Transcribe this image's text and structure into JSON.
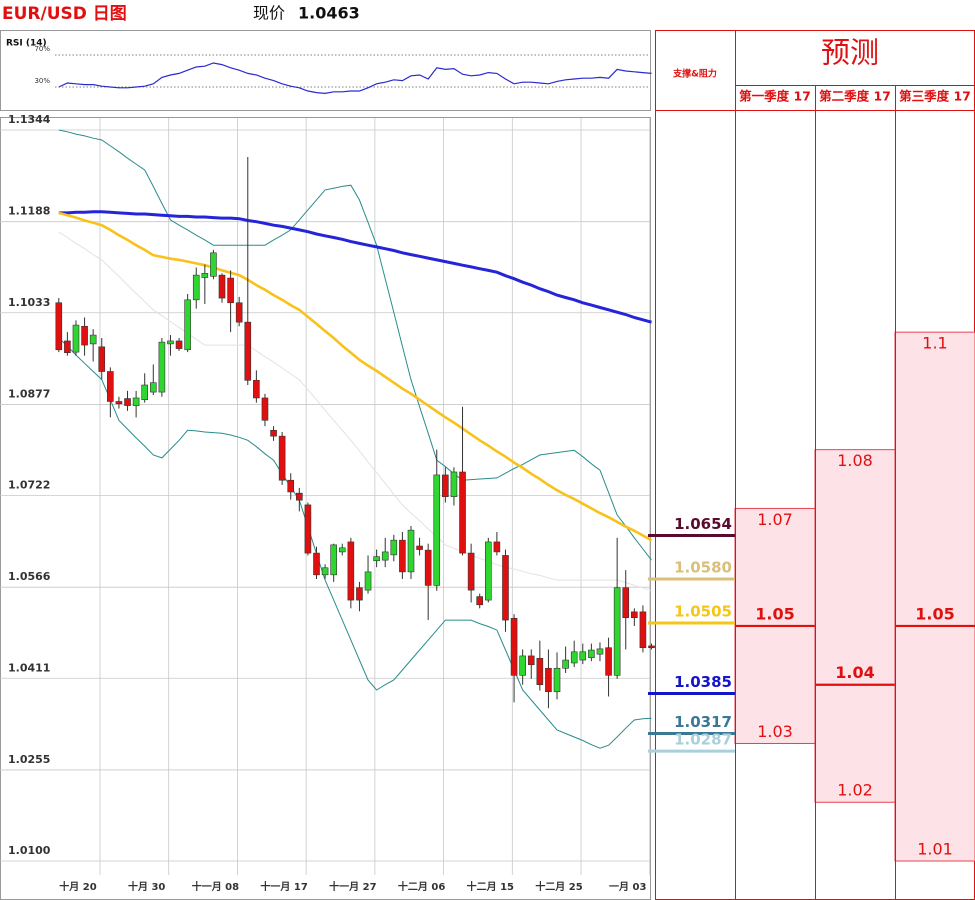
{
  "header": {
    "title": "EUR/USD 日图",
    "price_label": "现价",
    "price": 1.0463
  },
  "chart_data": [
    {
      "type": "line",
      "title": "RSI (14)",
      "color": "#2a2ad0",
      "ylim": [
        0,
        100
      ],
      "yticks": [
        {
          "value": 30,
          "label": "30%"
        },
        {
          "value": 70,
          "label": "70%"
        }
      ],
      "values": [
        30,
        35,
        34,
        33,
        33,
        31,
        30,
        29,
        29,
        30,
        31,
        34,
        42,
        45,
        47,
        51,
        55,
        56,
        60,
        58,
        54,
        51,
        47,
        45,
        41,
        38,
        34,
        31,
        29,
        25,
        23,
        22,
        24,
        24,
        25,
        25,
        29,
        34,
        36,
        39,
        38,
        44,
        45,
        40,
        54,
        52,
        53,
        46,
        44,
        45,
        48,
        47,
        40,
        34,
        36,
        36,
        35,
        34,
        37,
        39,
        40,
        41,
        41,
        42,
        41,
        52,
        50,
        49,
        48,
        47
      ]
    },
    {
      "type": "candlestick",
      "up_color": "#2fd62f",
      "down_color": "#e01010",
      "grid": true,
      "ylim": [
        1.01,
        1.1344
      ],
      "yticks": [
        {
          "value": 1.01,
          "label": "1.0100"
        },
        1.0255,
        1.0411,
        1.0566,
        1.0722,
        1.0877,
        1.1033,
        1.1188,
        1.1344
      ],
      "categories": [
        null,
        null,
        "十月 20",
        null,
        null,
        null,
        null,
        null,
        null,
        null,
        "十月 30",
        null,
        null,
        null,
        null,
        null,
        null,
        null,
        "十一月 08",
        null,
        null,
        null,
        null,
        null,
        null,
        null,
        "十一月 17",
        null,
        null,
        null,
        null,
        null,
        null,
        null,
        "十一月 27",
        null,
        null,
        null,
        null,
        null,
        null,
        null,
        "十二月 06",
        null,
        null,
        null,
        null,
        null,
        null,
        null,
        "十二月 15",
        null,
        null,
        null,
        null,
        null,
        null,
        null,
        "十二月 25",
        null,
        null,
        null,
        null,
        null,
        null,
        null,
        "一月 03",
        null,
        null,
        null
      ],
      "open": [
        1.105,
        1.0985,
        1.0966,
        1.101,
        1.098,
        1.0975,
        1.0933,
        1.0882,
        1.0887,
        1.0875,
        1.0885,
        1.0898,
        1.0898,
        1.098,
        1.0985,
        1.097,
        1.1055,
        1.1093,
        1.1095,
        1.1097,
        1.1092,
        1.105,
        1.1017,
        1.0918,
        1.0888,
        1.0833,
        1.0823,
        1.0748,
        1.0726,
        1.0706,
        1.0624,
        1.0587,
        1.0587,
        1.0626,
        1.0643,
        1.0565,
        1.0561,
        1.0611,
        1.0612,
        1.0621,
        1.0646,
        1.0592,
        1.0636,
        1.0629,
        1.0569,
        1.0757,
        1.072,
        1.0762,
        1.0624,
        1.055,
        1.0544,
        1.0643,
        1.062,
        1.0513,
        1.0416,
        1.0449,
        1.0445,
        1.0428,
        1.0388,
        1.0428,
        1.0437,
        1.0442,
        1.0446,
        1.0452,
        1.0463,
        1.0416,
        1.0565,
        1.0524,
        1.0524,
        1.0466
      ],
      "high": [
        1.1058,
        1.1,
        1.102,
        1.1025,
        1.1005,
        1.099,
        1.094,
        1.089,
        1.09,
        1.09,
        1.093,
        1.0945,
        1.099,
        1.0995,
        1.099,
        1.1065,
        1.111,
        1.1115,
        1.114,
        1.11,
        1.1105,
        1.106,
        1.1298,
        1.0935,
        1.0895,
        1.084,
        1.083,
        1.076,
        1.0735,
        1.071,
        1.0635,
        1.0605,
        1.064,
        1.064,
        1.065,
        1.0575,
        1.062,
        1.063,
        1.065,
        1.0655,
        1.066,
        1.067,
        1.065,
        1.064,
        1.08,
        1.077,
        1.077,
        1.0873,
        1.064,
        1.0555,
        1.065,
        1.066,
        1.063,
        1.052,
        1.046,
        1.046,
        1.0475,
        1.046,
        1.0455,
        1.0465,
        1.0475,
        1.047,
        1.047,
        1.0472,
        1.048,
        1.065,
        1.0595,
        1.053,
        1.0535,
        1.047
      ],
      "low": [
        1.0966,
        1.096,
        1.096,
        1.096,
        1.095,
        1.092,
        1.0855,
        1.087,
        1.0866,
        1.0855,
        1.088,
        1.0893,
        1.089,
        1.096,
        1.0968,
        1.0966,
        1.104,
        1.1048,
        1.109,
        1.105,
        1.1,
        1.101,
        1.091,
        1.088,
        1.084,
        1.0815,
        1.074,
        1.0715,
        1.0695,
        1.062,
        1.058,
        1.058,
        1.0575,
        1.062,
        1.053,
        1.0525,
        1.0555,
        1.06,
        1.06,
        1.061,
        1.058,
        1.058,
        1.062,
        1.051,
        1.056,
        1.071,
        1.0705,
        1.062,
        1.054,
        1.053,
        1.054,
        1.062,
        1.049,
        1.037,
        1.04,
        1.041,
        1.039,
        1.036,
        1.0375,
        1.042,
        1.043,
        1.0435,
        1.044,
        1.044,
        1.038,
        1.041,
        1.046,
        1.05,
        1.0455,
        1.046
      ],
      "close": [
        1.097,
        1.0965,
        1.1012,
        1.0978,
        1.0995,
        1.0933,
        1.0882,
        1.0878,
        1.0875,
        1.0888,
        1.091,
        1.0914,
        1.0983,
        1.0985,
        1.0972,
        1.1055,
        1.1097,
        1.11,
        1.1135,
        1.1058,
        1.105,
        1.1017,
        1.0918,
        1.0888,
        1.085,
        1.0823,
        1.0748,
        1.0728,
        1.0714,
        1.0624,
        1.0587,
        1.0599,
        1.0638,
        1.0633,
        1.0544,
        1.0544,
        1.0592,
        1.0618,
        1.0626,
        1.0646,
        1.0592,
        1.0663,
        1.063,
        1.0569,
        1.0757,
        1.072,
        1.0762,
        1.0624,
        1.0561,
        1.0536,
        1.0643,
        1.0626,
        1.051,
        1.0416,
        1.0449,
        1.0434,
        1.04,
        1.0388,
        1.0428,
        1.0442,
        1.0456,
        1.0456,
        1.0459,
        1.0461,
        1.0416,
        1.0565,
        1.0514,
        1.0514,
        1.0463,
        1.0463
      ],
      "series": [
        {
          "color": "#2424d8",
          "values": [
            1.1203,
            1.1203,
            1.1204,
            1.1204,
            1.1205,
            1.1205,
            1.1204,
            1.1203,
            1.1202,
            1.1201,
            1.1201,
            1.12,
            1.1199,
            1.1198,
            1.1197,
            1.1197,
            1.1196,
            1.1196,
            1.1195,
            1.1194,
            1.1194,
            1.1193,
            1.119,
            1.1188,
            1.1185,
            1.1182,
            1.118,
            1.1177,
            1.1174,
            1.1171,
            1.1167,
            1.1164,
            1.1161,
            1.1158,
            1.1154,
            1.1151,
            1.1148,
            1.1145,
            1.1142,
            1.1139,
            1.1135,
            1.1132,
            1.1129,
            1.1126,
            1.1123,
            1.112,
            1.1117,
            1.1114,
            1.1111,
            1.1108,
            1.1105,
            1.1102,
            1.1096,
            1.1091,
            1.1085,
            1.108,
            1.1074,
            1.1069,
            1.1063,
            1.1059,
            1.1055,
            1.105,
            1.1046,
            1.1042,
            1.1038,
            1.1034,
            1.103,
            1.1025,
            1.1021,
            1.1017
          ]
        },
        {
          "color": "#f8c21b",
          "values": [
            1.1203,
            1.1199,
            1.1195,
            1.119,
            1.1186,
            1.1182,
            1.1174,
            1.1165,
            1.1157,
            1.1148,
            1.114,
            1.1131,
            1.1128,
            1.1125,
            1.1123,
            1.112,
            1.1117,
            1.1114,
            1.111,
            1.1105,
            1.1101,
            1.1097,
            1.1089,
            1.108,
            1.1072,
            1.1063,
            1.1055,
            1.1046,
            1.1038,
            1.1026,
            1.1014,
            1.1002,
            1.099,
            1.0977,
            1.0965,
            1.0953,
            1.0943,
            1.0934,
            1.0924,
            1.0914,
            1.0904,
            1.0895,
            1.0885,
            1.0875,
            1.0865,
            1.0855,
            1.0846,
            1.0836,
            1.0826,
            1.0816,
            1.0807,
            1.0797,
            1.0788,
            1.0778,
            1.0769,
            1.0759,
            1.075,
            1.074,
            1.0731,
            1.0723,
            1.0716,
            1.0708,
            1.07,
            1.0692,
            1.0685,
            1.0677,
            1.0669,
            1.0662,
            1.0654,
            1.0646
          ]
        },
        {
          "color": "#2a8c8c",
          "values": [
            1.1344,
            1.1341,
            1.1337,
            1.1334,
            1.133,
            1.1327,
            1.1317,
            1.1307,
            1.1296,
            1.1286,
            1.1276,
            1.1248,
            1.1219,
            1.1191,
            1.1182,
            1.1174,
            1.1165,
            1.1157,
            1.1148,
            1.1148,
            1.1148,
            1.1148,
            1.1148,
            1.1148,
            1.1148,
            1.1157,
            1.1165,
            1.1174,
            1.1191,
            1.1208,
            1.1225,
            1.1242,
            1.1245,
            1.1248,
            1.125,
            1.1225,
            1.1187,
            1.1148,
            1.1091,
            1.1034,
            1.0976,
            1.0919,
            1.0873,
            1.0828,
            1.0782,
            1.0771,
            1.0759,
            1.0748,
            1.0749,
            1.075,
            1.0751,
            1.0752,
            1.076,
            1.0768,
            1.0775,
            1.0783,
            1.0791,
            1.0793,
            1.0795,
            1.0797,
            1.0799,
            1.0788,
            1.0776,
            1.0765,
            1.0727,
            1.0689,
            1.067,
            1.065,
            1.0631,
            1.0612
          ]
        },
        {
          "color": "#2a8c8c",
          "values": [
            1.099,
            1.0976,
            1.0961,
            1.0947,
            1.0933,
            1.0919,
            1.0885,
            1.085,
            1.0835,
            1.082,
            1.0806,
            1.0791,
            1.0786,
            1.0801,
            1.0816,
            1.0833,
            1.0832,
            1.083,
            1.0829,
            1.0828,
            1.0825,
            1.0821,
            1.0816,
            1.0805,
            1.0793,
            1.0782,
            1.0759,
            1.0737,
            1.0714,
            1.0669,
            1.0623,
            1.0578,
            1.0544,
            1.051,
            1.0476,
            1.0442,
            1.0408,
            1.0391,
            1.04,
            1.0408,
            1.0425,
            1.0442,
            1.0459,
            1.0476,
            1.0493,
            1.051,
            1.051,
            1.051,
            1.051,
            1.0504,
            1.0499,
            1.0493,
            1.0459,
            1.0425,
            1.0391,
            1.0374,
            1.0357,
            1.034,
            1.0323,
            1.0317,
            1.0311,
            1.0305,
            1.0298,
            1.0292,
            1.0297,
            1.0311,
            1.0326,
            1.034,
            1.0342,
            1.0343
          ]
        },
        {
          "color": "#e2e2e2",
          "values": [
            1.117,
            1.1161,
            1.1151,
            1.1142,
            1.1132,
            1.1123,
            1.1109,
            1.1095,
            1.108,
            1.1066,
            1.1052,
            1.1038,
            1.1028,
            1.1018,
            1.1008,
            1.0998,
            1.0988,
            1.0978,
            1.0978,
            1.0978,
            1.0978,
            1.0978,
            1.0978,
            1.0968,
            1.0958,
            1.0949,
            1.0939,
            1.0929,
            1.0919,
            1.0902,
            1.0885,
            1.0867,
            1.085,
            1.0833,
            1.0816,
            1.0798,
            1.0779,
            1.0761,
            1.0743,
            1.0724,
            1.0706,
            1.0692,
            1.0679,
            1.0665,
            1.0652,
            1.0638,
            1.0632,
            1.0627,
            1.0621,
            1.0615,
            1.061,
            1.0604,
            1.06,
            1.0597,
            1.0593,
            1.0589,
            1.0586,
            1.0582,
            1.0578,
            1.0578,
            1.0578,
            1.0578,
            1.0578,
            1.0578,
            1.0578,
            1.0578,
            1.0574,
            1.0569,
            1.0565,
            1.056
          ]
        }
      ],
      "levels": {
        "values": [
          1.0654,
          1.058,
          1.0505,
          1.0385,
          1.0317,
          1.0287
        ],
        "value_labels": [
          "1.0654",
          "1.0580",
          "1.0505",
          "1.0385",
          "1.0317",
          "1.0287"
        ],
        "colors": [
          "#5a0a2c",
          "#d9bf78",
          "#f5c518",
          "#1414c8",
          "#3a7895",
          "#a9d0da"
        ]
      }
    }
  ],
  "forecast": {
    "header": "支撑&阻力",
    "title": "预测",
    "columns": [
      {
        "name": "第一季度 17",
        "high": 1.07,
        "mid": 1.05,
        "low": 1.03
      },
      {
        "name": "第二季度 17",
        "high": 1.08,
        "mid": 1.04,
        "low": 1.02
      },
      {
        "name": "第三季度 17",
        "high": 1.1,
        "mid": 1.05,
        "low": 1.01
      }
    ]
  }
}
